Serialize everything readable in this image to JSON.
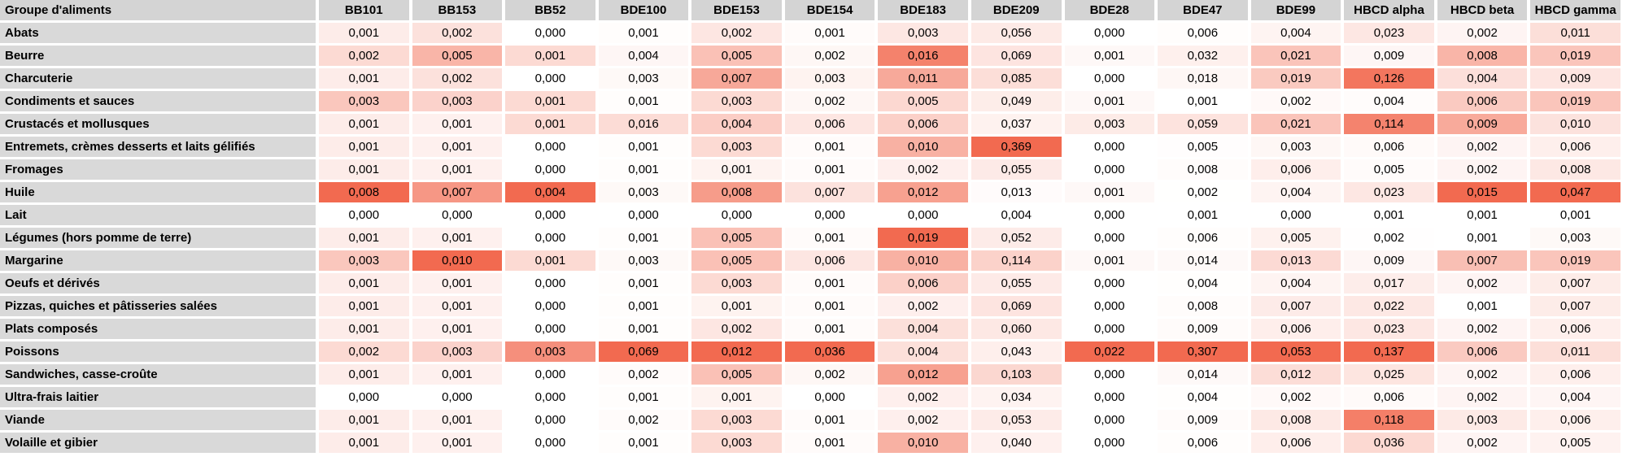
{
  "chart_data": {
    "type": "heatmap",
    "corner_label": "Groupe d'aliments",
    "columns": [
      "BB101",
      "BB153",
      "BB52",
      "BDE100",
      "BDE153",
      "BDE154",
      "BDE183",
      "BDE209",
      "BDE28",
      "BDE47",
      "BDE99",
      "HBCD alpha",
      "HBCD beta",
      "HBCD gamma"
    ],
    "rows": [
      "Abats",
      "Beurre",
      "Charcuterie",
      "Condiments et sauces",
      "Crustacés et mollusques",
      "Entremets, crèmes desserts et laits gélifiés",
      "Fromages",
      "Huile",
      "Lait",
      "Légumes (hors pomme de terre)",
      "Margarine",
      "Oeufs et dérivés",
      "Pizzas, quiches et pâtisseries salées",
      "Plats composés",
      "Poissons",
      "Sandwiches, casse-croûte",
      "Ultra-frais laitier",
      "Viande",
      "Volaille et gibier"
    ],
    "values": [
      [
        "0,001",
        "0,002",
        "0,000",
        "0,001",
        "0,002",
        "0,001",
        "0,003",
        "0,056",
        "0,000",
        "0,006",
        "0,004",
        "0,023",
        "0,002",
        "0,011"
      ],
      [
        "0,002",
        "0,005",
        "0,001",
        "0,004",
        "0,005",
        "0,002",
        "0,016",
        "0,069",
        "0,001",
        "0,032",
        "0,021",
        "0,009",
        "0,008",
        "0,019"
      ],
      [
        "0,001",
        "0,002",
        "0,000",
        "0,003",
        "0,007",
        "0,003",
        "0,011",
        "0,085",
        "0,000",
        "0,018",
        "0,019",
        "0,126",
        "0,004",
        "0,009"
      ],
      [
        "0,003",
        "0,003",
        "0,001",
        "0,001",
        "0,003",
        "0,002",
        "0,005",
        "0,049",
        "0,001",
        "0,001",
        "0,002",
        "0,004",
        "0,006",
        "0,019"
      ],
      [
        "0,001",
        "0,001",
        "0,001",
        "0,016",
        "0,004",
        "0,006",
        "0,006",
        "0,037",
        "0,003",
        "0,059",
        "0,021",
        "0,114",
        "0,009",
        "0,010"
      ],
      [
        "0,001",
        "0,001",
        "0,000",
        "0,001",
        "0,003",
        "0,001",
        "0,010",
        "0,369",
        "0,000",
        "0,005",
        "0,003",
        "0,006",
        "0,002",
        "0,006"
      ],
      [
        "0,001",
        "0,001",
        "0,000",
        "0,001",
        "0,001",
        "0,001",
        "0,002",
        "0,055",
        "0,000",
        "0,008",
        "0,006",
        "0,005",
        "0,002",
        "0,008"
      ],
      [
        "0,008",
        "0,007",
        "0,004",
        "0,003",
        "0,008",
        "0,007",
        "0,012",
        "0,013",
        "0,001",
        "0,002",
        "0,004",
        "0,023",
        "0,015",
        "0,047"
      ],
      [
        "0,000",
        "0,000",
        "0,000",
        "0,000",
        "0,000",
        "0,000",
        "0,000",
        "0,004",
        "0,000",
        "0,001",
        "0,000",
        "0,001",
        "0,001",
        "0,001"
      ],
      [
        "0,001",
        "0,001",
        "0,000",
        "0,001",
        "0,005",
        "0,001",
        "0,019",
        "0,052",
        "0,000",
        "0,006",
        "0,005",
        "0,002",
        "0,001",
        "0,003"
      ],
      [
        "0,003",
        "0,010",
        "0,001",
        "0,003",
        "0,005",
        "0,006",
        "0,010",
        "0,114",
        "0,001",
        "0,014",
        "0,013",
        "0,009",
        "0,007",
        "0,019"
      ],
      [
        "0,001",
        "0,001",
        "0,000",
        "0,001",
        "0,003",
        "0,001",
        "0,006",
        "0,055",
        "0,000",
        "0,004",
        "0,004",
        "0,017",
        "0,002",
        "0,007"
      ],
      [
        "0,001",
        "0,001",
        "0,000",
        "0,001",
        "0,001",
        "0,001",
        "0,002",
        "0,069",
        "0,000",
        "0,008",
        "0,007",
        "0,022",
        "0,001",
        "0,007"
      ],
      [
        "0,001",
        "0,001",
        "0,000",
        "0,001",
        "0,002",
        "0,001",
        "0,004",
        "0,060",
        "0,000",
        "0,009",
        "0,006",
        "0,023",
        "0,002",
        "0,006"
      ],
      [
        "0,002",
        "0,003",
        "0,003",
        "0,069",
        "0,012",
        "0,036",
        "0,004",
        "0,043",
        "0,022",
        "0,307",
        "0,053",
        "0,137",
        "0,006",
        "0,011"
      ],
      [
        "0,001",
        "0,001",
        "0,000",
        "0,002",
        "0,005",
        "0,002",
        "0,012",
        "0,103",
        "0,000",
        "0,014",
        "0,012",
        "0,025",
        "0,002",
        "0,006"
      ],
      [
        "0,000",
        "0,000",
        "0,000",
        "0,001",
        "0,001",
        "0,000",
        "0,002",
        "0,034",
        "0,000",
        "0,004",
        "0,002",
        "0,006",
        "0,002",
        "0,004"
      ],
      [
        "0,001",
        "0,001",
        "0,000",
        "0,002",
        "0,003",
        "0,001",
        "0,002",
        "0,053",
        "0,000",
        "0,009",
        "0,008",
        "0,118",
        "0,003",
        "0,006"
      ],
      [
        "0,001",
        "0,001",
        "0,000",
        "0,001",
        "0,003",
        "0,001",
        "0,010",
        "0,040",
        "0,000",
        "0,006",
        "0,006",
        "0,036",
        "0,002",
        "0,005"
      ]
    ],
    "color_scale": {
      "low": "#ffffff",
      "high": "#f26a50",
      "scaling": "per-column"
    }
  }
}
